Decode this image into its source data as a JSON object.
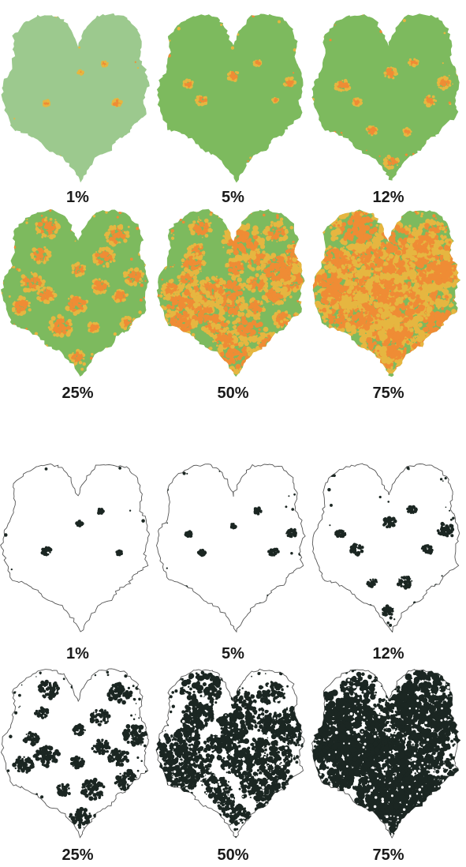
{
  "palette": {
    "healthy_green": "#7dba5e",
    "pale_green": "#9cc98e",
    "lesion_orange": "#ef8c35",
    "lesion_yellow": "#e6b640",
    "outline": "#555555",
    "binary_black": "#1b2622",
    "binary_white": "#ffffff"
  },
  "color_panel": {
    "description_style": "false-color severity maps",
    "leaves": [
      {
        "label": "1%",
        "severity": 0.01
      },
      {
        "label": "5%",
        "severity": 0.05
      },
      {
        "label": "12%",
        "severity": 0.12
      },
      {
        "label": "25%",
        "severity": 0.25
      },
      {
        "label": "50%",
        "severity": 0.5
      },
      {
        "label": "75%",
        "severity": 0.75
      }
    ]
  },
  "binary_panel": {
    "leaves": [
      {
        "label": "1%",
        "severity": 0.01
      },
      {
        "label": "5%",
        "severity": 0.05
      },
      {
        "label": "12%",
        "severity": 0.12
      },
      {
        "label": "25%",
        "severity": 0.25
      },
      {
        "label": "50%",
        "severity": 0.5
      },
      {
        "label": "75%",
        "severity": 0.75
      }
    ]
  }
}
